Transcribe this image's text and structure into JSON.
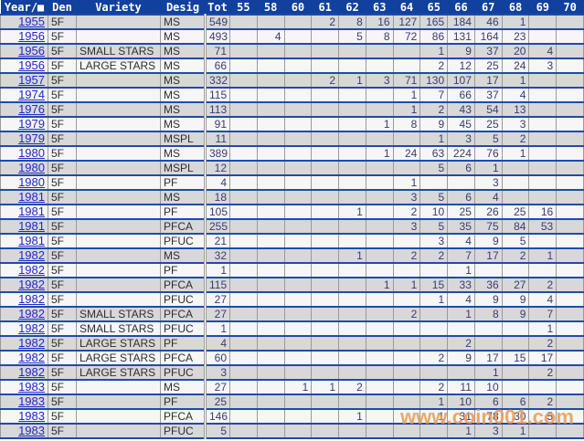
{
  "watermark": {
    "text": "www.coin001.com",
    "color": "#EC9A52"
  },
  "colors": {
    "header_bg": "#11409E",
    "row_separator": "#1E4CA8",
    "row_odd_bg": "#D8D8D8",
    "row_even_bg": "#F6F6F6",
    "gridline": "#9A9A9A",
    "year_link": "#2525CC",
    "number_text": "#3B3B6E"
  },
  "table": {
    "columns": [
      {
        "key": "year",
        "label": "Year/■"
      },
      {
        "key": "den",
        "label": "Den"
      },
      {
        "key": "variety",
        "label": "Variety"
      },
      {
        "key": "desig",
        "label": "Desig"
      },
      {
        "key": "tot",
        "label": "Tot"
      },
      {
        "key": "55",
        "label": "55"
      },
      {
        "key": "58",
        "label": "58"
      },
      {
        "key": "60",
        "label": "60"
      },
      {
        "key": "61",
        "label": "61"
      },
      {
        "key": "62",
        "label": "62"
      },
      {
        "key": "63",
        "label": "63"
      },
      {
        "key": "64",
        "label": "64"
      },
      {
        "key": "65",
        "label": "65"
      },
      {
        "key": "66",
        "label": "66"
      },
      {
        "key": "67",
        "label": "67"
      },
      {
        "key": "68",
        "label": "68"
      },
      {
        "key": "69",
        "label": "69"
      },
      {
        "key": "70",
        "label": "70"
      }
    ],
    "rows": [
      {
        "year": "1955",
        "den": "5F",
        "variety": "",
        "desig": "MS",
        "tot": "549",
        "61": "2",
        "62": "8",
        "63": "16",
        "64": "127",
        "65": "165",
        "66": "184",
        "67": "46",
        "68": "1"
      },
      {
        "year": "1956",
        "den": "5F",
        "variety": "",
        "desig": "MS",
        "tot": "493",
        "58": "4",
        "62": "5",
        "63": "8",
        "64": "72",
        "65": "86",
        "66": "131",
        "67": "164",
        "68": "23"
      },
      {
        "year": "1956",
        "den": "5F",
        "variety": "SMALL STARS",
        "desig": "MS",
        "tot": "71",
        "65": "1",
        "66": "9",
        "67": "37",
        "68": "20",
        "69": "4"
      },
      {
        "year": "1956",
        "den": "5F",
        "variety": "LARGE STARS",
        "desig": "MS",
        "tot": "66",
        "65": "2",
        "66": "12",
        "67": "25",
        "68": "24",
        "69": "3"
      },
      {
        "year": "1957",
        "den": "5F",
        "variety": "",
        "desig": "MS",
        "tot": "332",
        "61": "2",
        "62": "1",
        "63": "3",
        "64": "71",
        "65": "130",
        "66": "107",
        "67": "17",
        "68": "1"
      },
      {
        "year": "1974",
        "den": "5F",
        "variety": "",
        "desig": "MS",
        "tot": "115",
        "64": "1",
        "65": "7",
        "66": "66",
        "67": "37",
        "68": "4"
      },
      {
        "year": "1976",
        "den": "5F",
        "variety": "",
        "desig": "MS",
        "tot": "113",
        "64": "1",
        "65": "2",
        "66": "43",
        "67": "54",
        "68": "13"
      },
      {
        "year": "1979",
        "den": "5F",
        "variety": "",
        "desig": "MS",
        "tot": "91",
        "63": "1",
        "64": "8",
        "65": "9",
        "66": "45",
        "67": "25",
        "68": "3"
      },
      {
        "year": "1979",
        "den": "5F",
        "variety": "",
        "desig": "MSPL",
        "tot": "11",
        "65": "1",
        "66": "3",
        "67": "5",
        "68": "2"
      },
      {
        "year": "1980",
        "den": "5F",
        "variety": "",
        "desig": "MS",
        "tot": "389",
        "63": "1",
        "64": "24",
        "65": "63",
        "66": "224",
        "67": "76",
        "68": "1"
      },
      {
        "year": "1980",
        "den": "5F",
        "variety": "",
        "desig": "MSPL",
        "tot": "12",
        "65": "5",
        "66": "6",
        "67": "1"
      },
      {
        "year": "1980",
        "den": "5F",
        "variety": "",
        "desig": "PF",
        "tot": "4",
        "64": "1",
        "67": "3"
      },
      {
        "year": "1981",
        "den": "5F",
        "variety": "",
        "desig": "MS",
        "tot": "18",
        "64": "3",
        "65": "5",
        "66": "6",
        "67": "4"
      },
      {
        "year": "1981",
        "den": "5F",
        "variety": "",
        "desig": "PF",
        "tot": "105",
        "62": "1",
        "64": "2",
        "65": "10",
        "66": "25",
        "67": "26",
        "68": "25",
        "69": "16"
      },
      {
        "year": "1981",
        "den": "5F",
        "variety": "",
        "desig": "PFCA",
        "tot": "255",
        "64": "3",
        "65": "5",
        "66": "35",
        "67": "75",
        "68": "84",
        "69": "53"
      },
      {
        "year": "1981",
        "den": "5F",
        "variety": "",
        "desig": "PFUC",
        "tot": "21",
        "65": "3",
        "66": "4",
        "67": "9",
        "68": "5"
      },
      {
        "year": "1982",
        "den": "5F",
        "variety": "",
        "desig": "MS",
        "tot": "32",
        "62": "1",
        "64": "2",
        "65": "2",
        "66": "7",
        "67": "17",
        "68": "2",
        "69": "1"
      },
      {
        "year": "1982",
        "den": "5F",
        "variety": "",
        "desig": "PF",
        "tot": "1",
        "66": "1"
      },
      {
        "year": "1982",
        "den": "5F",
        "variety": "",
        "desig": "PFCA",
        "tot": "115",
        "63": "1",
        "64": "1",
        "65": "15",
        "66": "33",
        "67": "36",
        "68": "27",
        "69": "2"
      },
      {
        "year": "1982",
        "den": "5F",
        "variety": "",
        "desig": "PFUC",
        "tot": "27",
        "65": "1",
        "66": "4",
        "67": "9",
        "68": "9",
        "69": "4"
      },
      {
        "year": "1982",
        "den": "5F",
        "variety": "SMALL STARS",
        "desig": "PFCA",
        "tot": "27",
        "64": "2",
        "66": "1",
        "67": "8",
        "68": "9",
        "69": "7"
      },
      {
        "year": "1982",
        "den": "5F",
        "variety": "SMALL STARS",
        "desig": "PFUC",
        "tot": "1",
        "69": "1"
      },
      {
        "year": "1982",
        "den": "5F",
        "variety": "LARGE STARS",
        "desig": "PF",
        "tot": "4",
        "66": "2",
        "69": "2"
      },
      {
        "year": "1982",
        "den": "5F",
        "variety": "LARGE STARS",
        "desig": "PFCA",
        "tot": "60",
        "65": "2",
        "66": "9",
        "67": "17",
        "68": "15",
        "69": "17"
      },
      {
        "year": "1982",
        "den": "5F",
        "variety": "LARGE STARS",
        "desig": "PFUC",
        "tot": "3",
        "67": "1",
        "69": "2"
      },
      {
        "year": "1983",
        "den": "5F",
        "variety": "",
        "desig": "MS",
        "tot": "27",
        "60": "1",
        "61": "1",
        "62": "2",
        "65": "2",
        "66": "11",
        "67": "10"
      },
      {
        "year": "1983",
        "den": "5F",
        "variety": "",
        "desig": "PF",
        "tot": "25",
        "65": "1",
        "66": "10",
        "67": "6",
        "68": "6",
        "69": "2"
      },
      {
        "year": "1983",
        "den": "5F",
        "variety": "",
        "desig": "PFCA",
        "tot": "146",
        "62": "1",
        "65": "1",
        "66": "31",
        "67": "78",
        "68": "30",
        "69": "5"
      },
      {
        "year": "1983",
        "den": "5F",
        "variety": "",
        "desig": "PFUC",
        "tot": "5",
        "66": "1",
        "67": "3",
        "68": "1"
      }
    ]
  }
}
